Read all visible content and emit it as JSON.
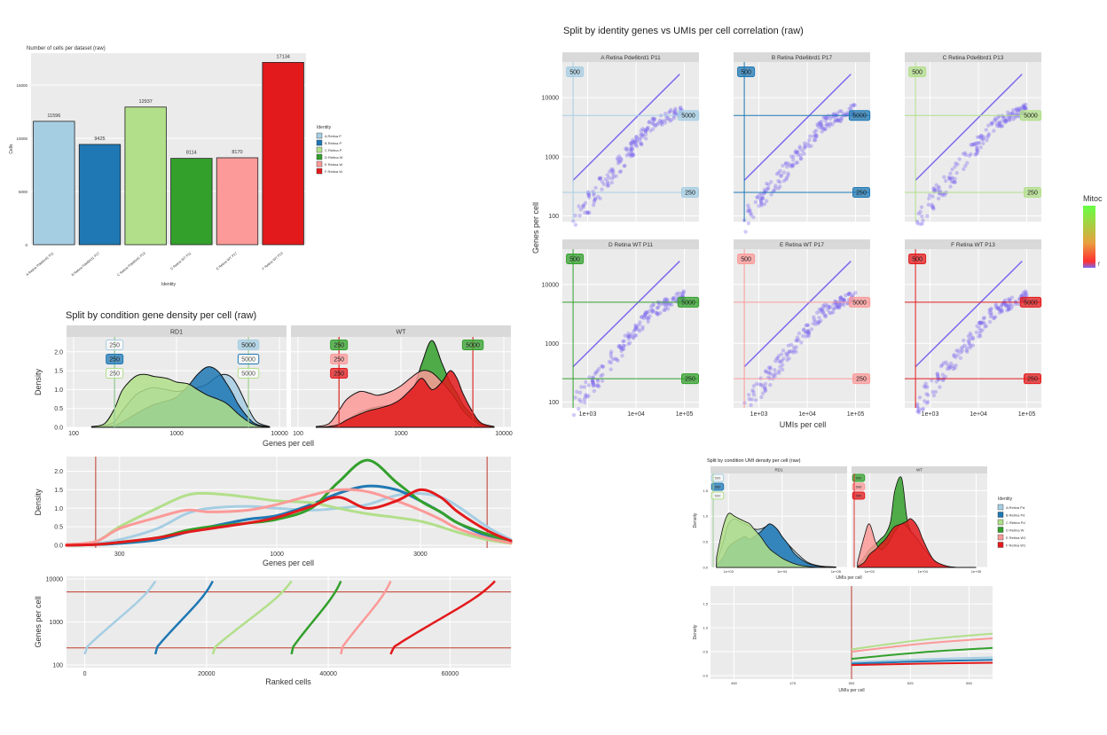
{
  "colors": {
    "A": "#a6cee3",
    "B": "#1f78b4",
    "C": "#b2df8a",
    "D": "#33a02c",
    "E": "#fb9a99",
    "F": "#e31a1c",
    "panel_bg": "#ebebeb",
    "strip_bg": "#d9d9d9",
    "scatter": "#7b68ee",
    "fit_line": "#7b68ee"
  },
  "chart_data": [
    {
      "id": "cells_per_dataset",
      "type": "bar",
      "title": "Number of cells per dataset (raw)",
      "xlabel": "Identity",
      "ylabel": "Cells",
      "categories": [
        "A Retina Pde6brd1 P11",
        "B Retina Pde6brd1 P17",
        "C Retina Pde6brd1 P13",
        "D Retina WT P11",
        "E Retina WT P17",
        "F Retina WT P13"
      ],
      "values": [
        11596,
        9425,
        12937,
        8114,
        8170,
        17134
      ],
      "value_labels": [
        "11596",
        "9425",
        "12937",
        "8114",
        "8170",
        "17134"
      ],
      "ylim": [
        0,
        18000
      ],
      "yticks": [
        0,
        5000,
        10000,
        15000
      ],
      "ytick_labels": [
        "0",
        "5000",
        "10000",
        "15000"
      ],
      "legend_title": "Identity",
      "legend_labels": [
        "A Retina P",
        "B Retina P",
        "C Retina P",
        "D Retina W",
        "E Retina W",
        "F Retina W"
      ]
    },
    {
      "id": "gene_density_condition",
      "type": "area",
      "title": "Split by condition gene density per cell (raw)",
      "xlabel": "Genes per cell",
      "ylabel": "Density",
      "facets": [
        "RD1",
        "WT"
      ],
      "x_scale": "log10",
      "xlim": [
        100,
        10000
      ],
      "xticks": [
        100,
        1000,
        10000
      ],
      "xtick_labels": [
        "100",
        "1000",
        "10000"
      ],
      "ylim": [
        0,
        2.3
      ],
      "yticks": [
        0,
        0.5,
        1.0,
        1.5,
        2.0
      ],
      "ytick_labels": [
        "0.0",
        "0.5",
        "1.0",
        "1.5",
        "2.0"
      ],
      "threshold_low": 250,
      "threshold_high": 5000,
      "threshold_label_low": "250",
      "threshold_label_high": "5000",
      "x": [
        150,
        200,
        250,
        300,
        400,
        500,
        600,
        800,
        1000,
        1300,
        1600,
        2000,
        2500,
        3000,
        3500,
        4000,
        5000,
        6000,
        8000
      ],
      "series": [
        {
          "name": "A Retina Pde6brd1 P11",
          "facet": "RD1",
          "values": [
            0.02,
            0.05,
            0.15,
            0.45,
            0.85,
            1.0,
            1.05,
            1.0,
            0.95,
            1.0,
            1.05,
            1.15,
            1.35,
            1.4,
            1.3,
            1.05,
            0.5,
            0.15,
            0.02
          ]
        },
        {
          "name": "B Retina Pde6brd1 P17",
          "facet": "RD1",
          "values": [
            0.0,
            0.02,
            0.05,
            0.15,
            0.35,
            0.5,
            0.6,
            0.7,
            0.8,
            1.1,
            1.4,
            1.6,
            1.5,
            1.2,
            0.9,
            0.6,
            0.25,
            0.08,
            0.01
          ]
        },
        {
          "name": "C Retina Pde6brd1 P13",
          "facet": "RD1",
          "values": [
            0.02,
            0.1,
            0.5,
            1.0,
            1.35,
            1.4,
            1.35,
            1.3,
            1.2,
            1.15,
            1.0,
            0.85,
            0.75,
            0.65,
            0.5,
            0.35,
            0.15,
            0.05,
            0.01
          ]
        },
        {
          "name": "D Retina WT P11",
          "facet": "WT",
          "values": [
            0.0,
            0.02,
            0.08,
            0.2,
            0.4,
            0.5,
            0.55,
            0.6,
            0.7,
            1.0,
            1.7,
            2.3,
            1.7,
            1.2,
            0.9,
            0.6,
            0.3,
            0.1,
            0.02
          ]
        },
        {
          "name": "E Retina WT P17",
          "facet": "WT",
          "values": [
            0.02,
            0.1,
            0.45,
            0.75,
            0.95,
            0.9,
            0.85,
            0.95,
            1.1,
            1.35,
            1.5,
            1.45,
            1.2,
            0.95,
            0.7,
            0.45,
            0.2,
            0.06,
            0.01
          ]
        },
        {
          "name": "F Retina WT P13",
          "facet": "WT",
          "values": [
            0.0,
            0.02,
            0.08,
            0.2,
            0.35,
            0.45,
            0.5,
            0.6,
            0.75,
            1.05,
            1.3,
            1.0,
            1.2,
            1.5,
            1.3,
            0.9,
            0.4,
            0.12,
            0.02
          ]
        }
      ]
    },
    {
      "id": "gene_density_overlay",
      "type": "line",
      "xlabel": "Genes per cell",
      "ylabel": "Density",
      "x_scale": "log10",
      "xlim": [
        200,
        6000
      ],
      "xticks": [
        300,
        1000,
        3000
      ],
      "xtick_labels": [
        "300",
        "1000",
        "3000"
      ],
      "ylim": [
        0,
        2.3
      ],
      "yticks": [
        0,
        0.5,
        1.0,
        1.5,
        2.0
      ],
      "ytick_labels": [
        "0.0",
        "0.5",
        "1.0",
        "1.5",
        "2.0"
      ],
      "threshold_low": 250,
      "threshold_high": 5000,
      "x": [
        200,
        250,
        300,
        400,
        500,
        600,
        800,
        1000,
        1300,
        1600,
        2000,
        2500,
        3000,
        3500,
        4000,
        5000,
        6000
      ],
      "series": [
        {
          "name": "A",
          "values": [
            0.02,
            0.05,
            0.15,
            0.45,
            0.85,
            1.0,
            1.05,
            1.0,
            0.95,
            1.0,
            1.1,
            1.35,
            1.4,
            1.3,
            1.05,
            0.5,
            0.15
          ]
        },
        {
          "name": "B",
          "values": [
            0.0,
            0.02,
            0.05,
            0.15,
            0.35,
            0.5,
            0.7,
            0.8,
            1.1,
            1.4,
            1.6,
            1.5,
            1.2,
            0.9,
            0.6,
            0.25,
            0.08
          ]
        },
        {
          "name": "C",
          "values": [
            0.02,
            0.1,
            0.5,
            1.0,
            1.35,
            1.4,
            1.3,
            1.2,
            1.15,
            1.0,
            0.85,
            0.75,
            0.65,
            0.5,
            0.35,
            0.15,
            0.05
          ]
        },
        {
          "name": "D",
          "values": [
            0.0,
            0.02,
            0.08,
            0.2,
            0.4,
            0.5,
            0.6,
            0.7,
            1.0,
            1.7,
            2.3,
            1.7,
            1.2,
            0.9,
            0.6,
            0.3,
            0.1
          ]
        },
        {
          "name": "E",
          "values": [
            0.02,
            0.1,
            0.45,
            0.75,
            0.95,
            0.9,
            0.95,
            1.1,
            1.35,
            1.5,
            1.45,
            1.2,
            0.95,
            0.7,
            0.45,
            0.2,
            0.06
          ]
        },
        {
          "name": "F",
          "values": [
            0.0,
            0.02,
            0.08,
            0.2,
            0.35,
            0.45,
            0.6,
            0.75,
            1.05,
            1.3,
            1.0,
            1.2,
            1.5,
            1.3,
            0.9,
            0.4,
            0.12
          ]
        }
      ]
    },
    {
      "id": "ranked_cells",
      "type": "scatter",
      "xlabel": "Ranked cells",
      "ylabel": "Genes per cell",
      "y_scale": "log10",
      "xlim": [
        -3000,
        70000
      ],
      "ylim": [
        100,
        10000
      ],
      "xticks": [
        0,
        20000,
        40000,
        60000
      ],
      "xtick_labels": [
        "0",
        "20000",
        "40000",
        "60000"
      ],
      "yticks": [
        100,
        1000,
        10000
      ],
      "ytick_labels": [
        "100",
        "1000",
        "10000"
      ],
      "threshold_low": 250,
      "threshold_high": 5000,
      "series": [
        {
          "name": "A",
          "start": 0,
          "count": 11596
        },
        {
          "name": "B",
          "start": 11596,
          "count": 9425
        },
        {
          "name": "C",
          "start": 21021,
          "count": 12937
        },
        {
          "name": "D",
          "start": 33958,
          "count": 8114
        },
        {
          "name": "E",
          "start": 42072,
          "count": 8170
        },
        {
          "name": "F",
          "start": 50242,
          "count": 17134
        }
      ]
    },
    {
      "id": "genes_vs_umis",
      "type": "scatter",
      "title": "Split by identity genes vs UMIs per cell correlation (raw)",
      "xlabel": "UMIs per cell",
      "ylabel": "Genes per cell",
      "x_scale": "log10",
      "y_scale": "log10",
      "xlim": [
        300,
        200000
      ],
      "ylim": [
        80,
        40000
      ],
      "xticks": [
        1000,
        10000,
        100000
      ],
      "xtick_labels": [
        "1e+03",
        "1e+04",
        "1e+05"
      ],
      "yticks": [
        100,
        1000,
        10000
      ],
      "ytick_labels": [
        "100",
        "1000",
        "10000"
      ],
      "facets": [
        "A Retina Pde6brd1 P11",
        "B Retina Pde6brd1 P17",
        "C Retina Pde6brd1 P13",
        "D Retina WT P11",
        "E Retina WT P17",
        "F Retina WT P13"
      ],
      "threshold_umi": 500,
      "threshold_gene_low": 250,
      "threshold_gene_high": 5000,
      "label_umi": "500",
      "label_gene_low": "250",
      "label_gene_high": "5000",
      "legend_title": "Mitoc",
      "legend_tick": "f"
    },
    {
      "id": "umi_density_condition",
      "type": "area",
      "title": "Split by condition UMI density per cell (raw)",
      "xlabel": "UMIs per cell",
      "ylabel": "Density",
      "facets": [
        "RD1",
        "WT"
      ],
      "x_scale": "log10",
      "xlim": [
        500,
        150000
      ],
      "xticks": [
        1000,
        10000,
        100000
      ],
      "xtick_labels": [
        "1e+03",
        "1e+04",
        "1e+05"
      ],
      "ylim": [
        0,
        1.8
      ],
      "yticks": [
        0,
        0.5,
        1.0,
        1.5
      ],
      "ytick_labels": [
        "0.0",
        "0.5",
        "1.0",
        "1.5"
      ],
      "threshold_label": "500",
      "x": [
        600,
        800,
        1000,
        1300,
        1600,
        2000,
        2500,
        3000,
        4000,
        5000,
        6000,
        8000,
        10000,
        13000,
        16000,
        20000,
        30000,
        50000,
        100000
      ],
      "series": [
        {
          "name": "A",
          "facet": "RD1",
          "values": [
            0.1,
            0.5,
            0.85,
            0.95,
            0.9,
            0.85,
            0.8,
            0.75,
            0.75,
            0.8,
            0.85,
            0.75,
            0.6,
            0.45,
            0.35,
            0.25,
            0.1,
            0.03,
            0.01
          ]
        },
        {
          "name": "B",
          "facet": "RD1",
          "values": [
            0.05,
            0.2,
            0.4,
            0.5,
            0.55,
            0.6,
            0.55,
            0.6,
            0.7,
            0.8,
            0.85,
            0.75,
            0.6,
            0.45,
            0.3,
            0.2,
            0.08,
            0.02,
            0.0
          ]
        },
        {
          "name": "C",
          "facet": "RD1",
          "values": [
            0.2,
            0.8,
            1.05,
            1.0,
            0.95,
            0.9,
            0.85,
            0.75,
            0.6,
            0.45,
            0.35,
            0.25,
            0.18,
            0.12,
            0.08,
            0.05,
            0.02,
            0.0,
            0.0
          ]
        },
        {
          "name": "D",
          "facet": "WT",
          "values": [
            0.05,
            0.2,
            0.35,
            0.45,
            0.55,
            0.65,
            0.9,
            1.5,
            1.75,
            1.0,
            0.7,
            0.5,
            0.3,
            0.15,
            0.08,
            0.04,
            0.01,
            0.0,
            0.0
          ]
        },
        {
          "name": "E",
          "facet": "WT",
          "values": [
            0.1,
            0.6,
            0.85,
            0.5,
            0.35,
            0.4,
            0.55,
            0.7,
            0.85,
            0.8,
            0.7,
            0.55,
            0.4,
            0.25,
            0.15,
            0.08,
            0.02,
            0.0,
            0.0
          ]
        },
        {
          "name": "F",
          "facet": "WT",
          "values": [
            0.02,
            0.1,
            0.25,
            0.35,
            0.45,
            0.55,
            0.7,
            0.8,
            0.85,
            0.9,
            0.95,
            0.8,
            0.55,
            0.3,
            0.15,
            0.08,
            0.02,
            0.0,
            0.0
          ]
        }
      ],
      "legend_title": "Identity",
      "legend_labels": [
        "A Retina Pd",
        "B Retina Pd",
        "C Retina Pd",
        "D Retina W",
        "E Retina W1",
        "F Retina W1"
      ]
    },
    {
      "id": "umi_density_zoom",
      "type": "line",
      "xlabel": "UMIs per cell",
      "ylabel": "Density",
      "xlim": [
        440,
        560
      ],
      "xticks": [
        450,
        475,
        500,
        525,
        550
      ],
      "xtick_labels": [
        "450",
        "475",
        "500",
        "525",
        "550"
      ],
      "ylim": [
        0,
        1.8
      ],
      "yticks": [
        0,
        0.5,
        1.0,
        1.5
      ],
      "ytick_labels": [
        "0.0",
        "0.5",
        "1.0",
        "1.5"
      ],
      "threshold": 500,
      "x": [
        500,
        560
      ],
      "series": [
        {
          "name": "C",
          "start": 0.55,
          "end": 0.88
        },
        {
          "name": "E",
          "start": 0.5,
          "end": 0.78
        },
        {
          "name": "D",
          "start": 0.35,
          "end": 0.58
        },
        {
          "name": "A",
          "start": 0.28,
          "end": 0.38
        },
        {
          "name": "B",
          "start": 0.25,
          "end": 0.33
        },
        {
          "name": "F",
          "start": 0.22,
          "end": 0.27
        }
      ]
    }
  ]
}
